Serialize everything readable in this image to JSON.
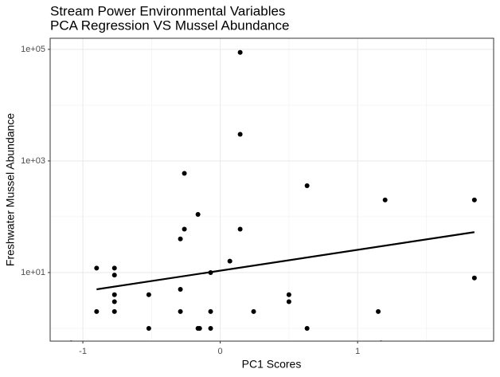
{
  "chart_data": {
    "type": "scatter",
    "title": [
      "Stream Power Environmental Variables",
      "PCA Regression VS Mussel Abundance"
    ],
    "x_label": "PC1 Scores",
    "y_label": "Freshwater Mussel Abundance",
    "x": [
      0.145,
      0.145,
      -0.261,
      0.632,
      1.2,
      1.85,
      -0.162,
      -0.261,
      0.145,
      -0.29,
      0.07,
      -0.9,
      -0.77,
      -0.77,
      -0.07,
      1.85,
      -0.29,
      -0.77,
      -0.52,
      0.5,
      -0.77,
      0.5,
      -0.9,
      -0.77,
      -0.29,
      -0.07,
      0.243,
      1.15,
      -0.52,
      -0.162,
      -0.15,
      -0.07,
      0.632,
      -1.085,
      1.17
    ],
    "values": [
      88000,
      3000,
      600,
      360,
      200,
      200,
      110,
      60,
      60,
      40,
      16,
      12,
      12,
      9,
      10,
      8,
      5,
      4,
      4,
      4,
      3,
      3,
      2,
      2,
      2,
      2,
      2,
      2,
      1,
      1,
      1,
      1,
      1,
      0.55,
      0.55
    ],
    "fit": {
      "x": [
        -0.9,
        1.85
      ],
      "values": [
        5,
        53
      ]
    },
    "color": "#000000",
    "xlim": [
      -1.238,
      1.99
    ],
    "ylim": [
      0.59,
      158000
    ],
    "log_y": true,
    "xticks": [
      -1,
      0,
      1
    ],
    "xminor": [
      -0.5,
      0.5,
      1.5
    ],
    "yticks": [
      {
        "value": 100000,
        "label": "1e+05"
      },
      {
        "value": 1000,
        "label": "1e+03"
      },
      {
        "value": 10,
        "label": "1e+01"
      }
    ],
    "yminor": [
      10000,
      100,
      1
    ],
    "grid": true
  }
}
